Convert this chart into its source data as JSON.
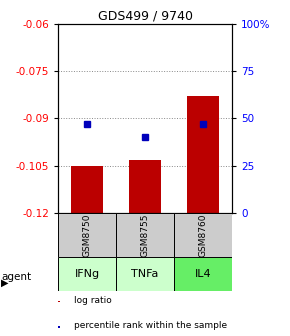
{
  "title": "GDS499 / 9740",
  "categories": [
    "IFNg",
    "TNFa",
    "IL4"
  ],
  "gsm_labels": [
    "GSM8750",
    "GSM8755",
    "GSM8760"
  ],
  "log_ratios": [
    -0.105,
    -0.103,
    -0.083
  ],
  "percentile_ranks": [
    47,
    40,
    47
  ],
  "ylim_left": [
    -0.12,
    -0.06
  ],
  "ylim_right": [
    0,
    100
  ],
  "yticks_left": [
    -0.12,
    -0.105,
    -0.09,
    -0.075,
    -0.06
  ],
  "yticks_right": [
    0,
    25,
    50,
    75,
    100
  ],
  "bar_color": "#bb0000",
  "dot_color": "#0000bb",
  "agent_row_colors": [
    "#ccffcc",
    "#ccffcc",
    "#66ee66"
  ],
  "gsm_row_color": "#cccccc",
  "grid_color": "#888888",
  "legend_bar_color": "#bb0000",
  "legend_dot_color": "#0000bb"
}
